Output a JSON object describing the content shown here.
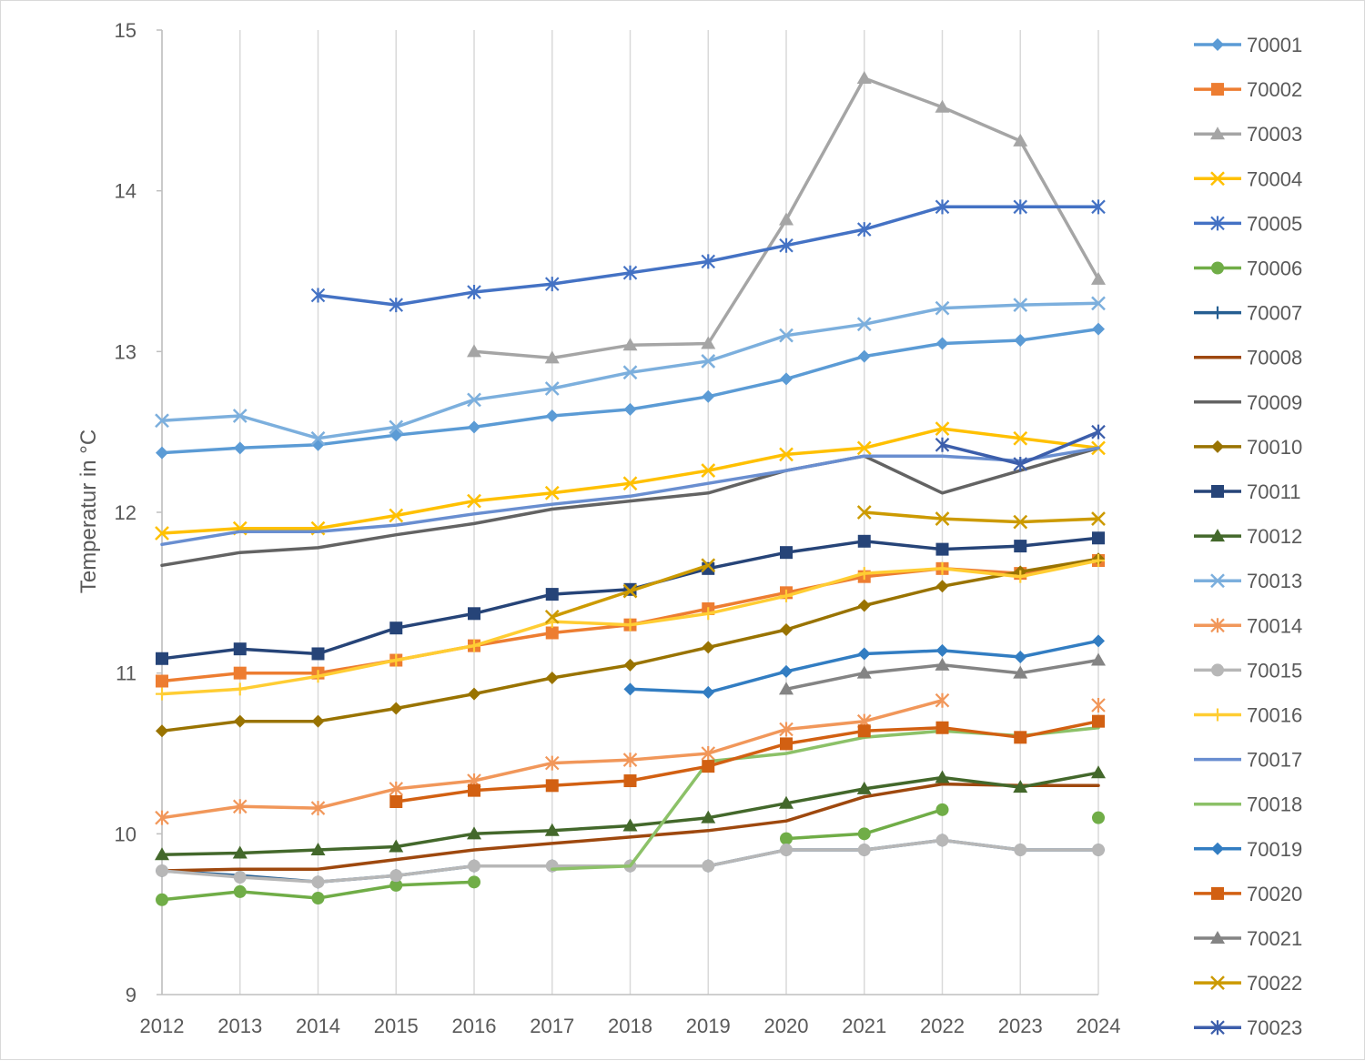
{
  "chart_data": {
    "type": "line",
    "title": "",
    "xlabel": "",
    "ylabel": "Temperatur in °C",
    "x": [
      2012,
      2013,
      2014,
      2015,
      2016,
      2017,
      2018,
      2019,
      2020,
      2021,
      2022,
      2023,
      2024
    ],
    "ylim": [
      9,
      15
    ],
    "yticks": [
      9,
      10,
      11,
      12,
      13,
      14,
      15
    ],
    "grid": "vertical",
    "legend": "right",
    "series": [
      {
        "name": "70001",
        "color": "#5b9bd5",
        "marker": "diamond",
        "values": [
          12.37,
          12.4,
          12.42,
          12.48,
          12.53,
          12.6,
          12.64,
          12.72,
          12.83,
          12.97,
          13.05,
          13.07,
          13.14
        ]
      },
      {
        "name": "70002",
        "color": "#ed7d31",
        "marker": "square",
        "values": [
          10.95,
          11.0,
          11.0,
          11.08,
          11.17,
          11.25,
          11.3,
          11.4,
          11.5,
          11.6,
          11.65,
          11.62,
          11.7
        ]
      },
      {
        "name": "70003",
        "color": "#a5a5a5",
        "marker": "triangle",
        "values": [
          null,
          null,
          null,
          null,
          13.0,
          12.96,
          13.04,
          13.05,
          13.82,
          14.7,
          14.52,
          14.31,
          13.45
        ]
      },
      {
        "name": "70004",
        "color": "#ffc000",
        "marker": "x",
        "values": [
          11.87,
          11.9,
          11.9,
          11.98,
          12.07,
          12.12,
          12.18,
          12.26,
          12.36,
          12.4,
          12.52,
          12.46,
          12.4
        ]
      },
      {
        "name": "70005",
        "color": "#4472c4",
        "marker": "star",
        "values": [
          null,
          null,
          13.35,
          13.29,
          13.37,
          13.42,
          13.49,
          13.56,
          13.66,
          13.76,
          13.9,
          13.9,
          13.9
        ]
      },
      {
        "name": "70006",
        "color": "#70ad47",
        "marker": "circle",
        "values": [
          9.59,
          9.64,
          9.6,
          9.68,
          9.7,
          null,
          null,
          null,
          9.97,
          10.0,
          10.15,
          null,
          10.1
        ]
      },
      {
        "name": "70007",
        "color": "#255e91",
        "marker": "plus",
        "values": [
          9.77,
          9.74,
          9.7,
          9.74,
          9.8,
          9.8,
          9.8,
          9.8,
          9.9,
          9.9,
          9.96,
          9.9,
          9.9
        ]
      },
      {
        "name": "70008",
        "color": "#9e480e",
        "marker": "none",
        "values": [
          9.77,
          9.78,
          9.78,
          9.84,
          9.9,
          9.94,
          9.98,
          10.02,
          10.08,
          10.23,
          10.31,
          10.3,
          10.3
        ]
      },
      {
        "name": "70009",
        "color": "#636363",
        "marker": "none",
        "values": [
          11.67,
          11.75,
          11.78,
          11.86,
          11.93,
          12.02,
          12.07,
          12.12,
          12.26,
          12.35,
          12.12,
          12.26,
          12.4
        ]
      },
      {
        "name": "70010",
        "color": "#997300",
        "marker": "diamond",
        "values": [
          10.64,
          10.7,
          10.7,
          10.78,
          10.87,
          10.97,
          11.05,
          11.16,
          11.27,
          11.42,
          11.54,
          11.63,
          11.71
        ]
      },
      {
        "name": "70011",
        "color": "#264478",
        "marker": "square",
        "values": [
          11.09,
          11.15,
          11.12,
          11.28,
          11.37,
          11.49,
          11.52,
          11.65,
          11.75,
          11.82,
          11.77,
          11.79,
          11.84
        ]
      },
      {
        "name": "70012",
        "color": "#43682b",
        "marker": "triangle",
        "values": [
          9.87,
          9.88,
          9.9,
          9.92,
          10.0,
          10.02,
          10.05,
          10.1,
          10.19,
          10.28,
          10.35,
          10.29,
          10.38
        ]
      },
      {
        "name": "70013",
        "color": "#7cafdd",
        "marker": "x",
        "values": [
          12.57,
          12.6,
          12.46,
          12.53,
          12.7,
          12.77,
          12.87,
          12.94,
          13.1,
          13.17,
          13.27,
          13.29,
          13.3
        ]
      },
      {
        "name": "70014",
        "color": "#f1975a",
        "marker": "star",
        "values": [
          10.1,
          10.17,
          10.16,
          10.28,
          10.33,
          10.44,
          10.46,
          10.5,
          10.65,
          10.7,
          10.83,
          null,
          10.8
        ]
      },
      {
        "name": "70015",
        "color": "#b7b7b7",
        "marker": "circle",
        "values": [
          9.77,
          9.73,
          9.7,
          9.74,
          9.8,
          9.8,
          9.8,
          9.8,
          9.9,
          9.9,
          9.96,
          9.9,
          9.9
        ]
      },
      {
        "name": "70016",
        "color": "#ffcd33",
        "marker": "plus",
        "values": [
          10.87,
          10.9,
          10.98,
          11.08,
          11.17,
          11.32,
          11.3,
          11.37,
          11.48,
          11.62,
          11.65,
          11.6,
          11.7
        ]
      },
      {
        "name": "70017",
        "color": "#698ed0",
        "marker": "none",
        "values": [
          11.8,
          11.88,
          11.88,
          11.92,
          11.99,
          12.05,
          12.1,
          12.18,
          12.26,
          12.35,
          12.35,
          12.32,
          12.4
        ]
      },
      {
        "name": "70018",
        "color": "#8cc168",
        "marker": "none",
        "values": [
          null,
          null,
          null,
          null,
          null,
          9.78,
          9.8,
          10.45,
          10.5,
          10.6,
          10.64,
          10.61,
          10.66
        ]
      },
      {
        "name": "70019",
        "color": "#327dc2",
        "marker": "diamond",
        "values": [
          null,
          null,
          null,
          null,
          null,
          null,
          10.9,
          10.88,
          11.01,
          11.12,
          11.14,
          11.1,
          11.2
        ]
      },
      {
        "name": "70020",
        "color": "#d26012",
        "marker": "square",
        "values": [
          null,
          null,
          null,
          10.2,
          10.27,
          10.3,
          10.33,
          10.42,
          10.56,
          10.64,
          10.66,
          10.6,
          10.7
        ]
      },
      {
        "name": "70021",
        "color": "#848484",
        "marker": "triangle",
        "values": [
          null,
          null,
          null,
          null,
          null,
          null,
          null,
          null,
          10.9,
          11.0,
          11.05,
          11.0,
          11.08
        ]
      },
      {
        "name": "70022",
        "color": "#cc9a00",
        "marker": "x",
        "values": [
          null,
          null,
          null,
          null,
          null,
          11.35,
          11.51,
          11.67,
          null,
          12.0,
          11.96,
          11.94,
          11.96
        ]
      },
      {
        "name": "70023",
        "color": "#3c5eab",
        "marker": "star",
        "values": [
          null,
          null,
          null,
          null,
          null,
          null,
          null,
          null,
          null,
          null,
          12.42,
          12.3,
          12.5
        ]
      }
    ]
  }
}
